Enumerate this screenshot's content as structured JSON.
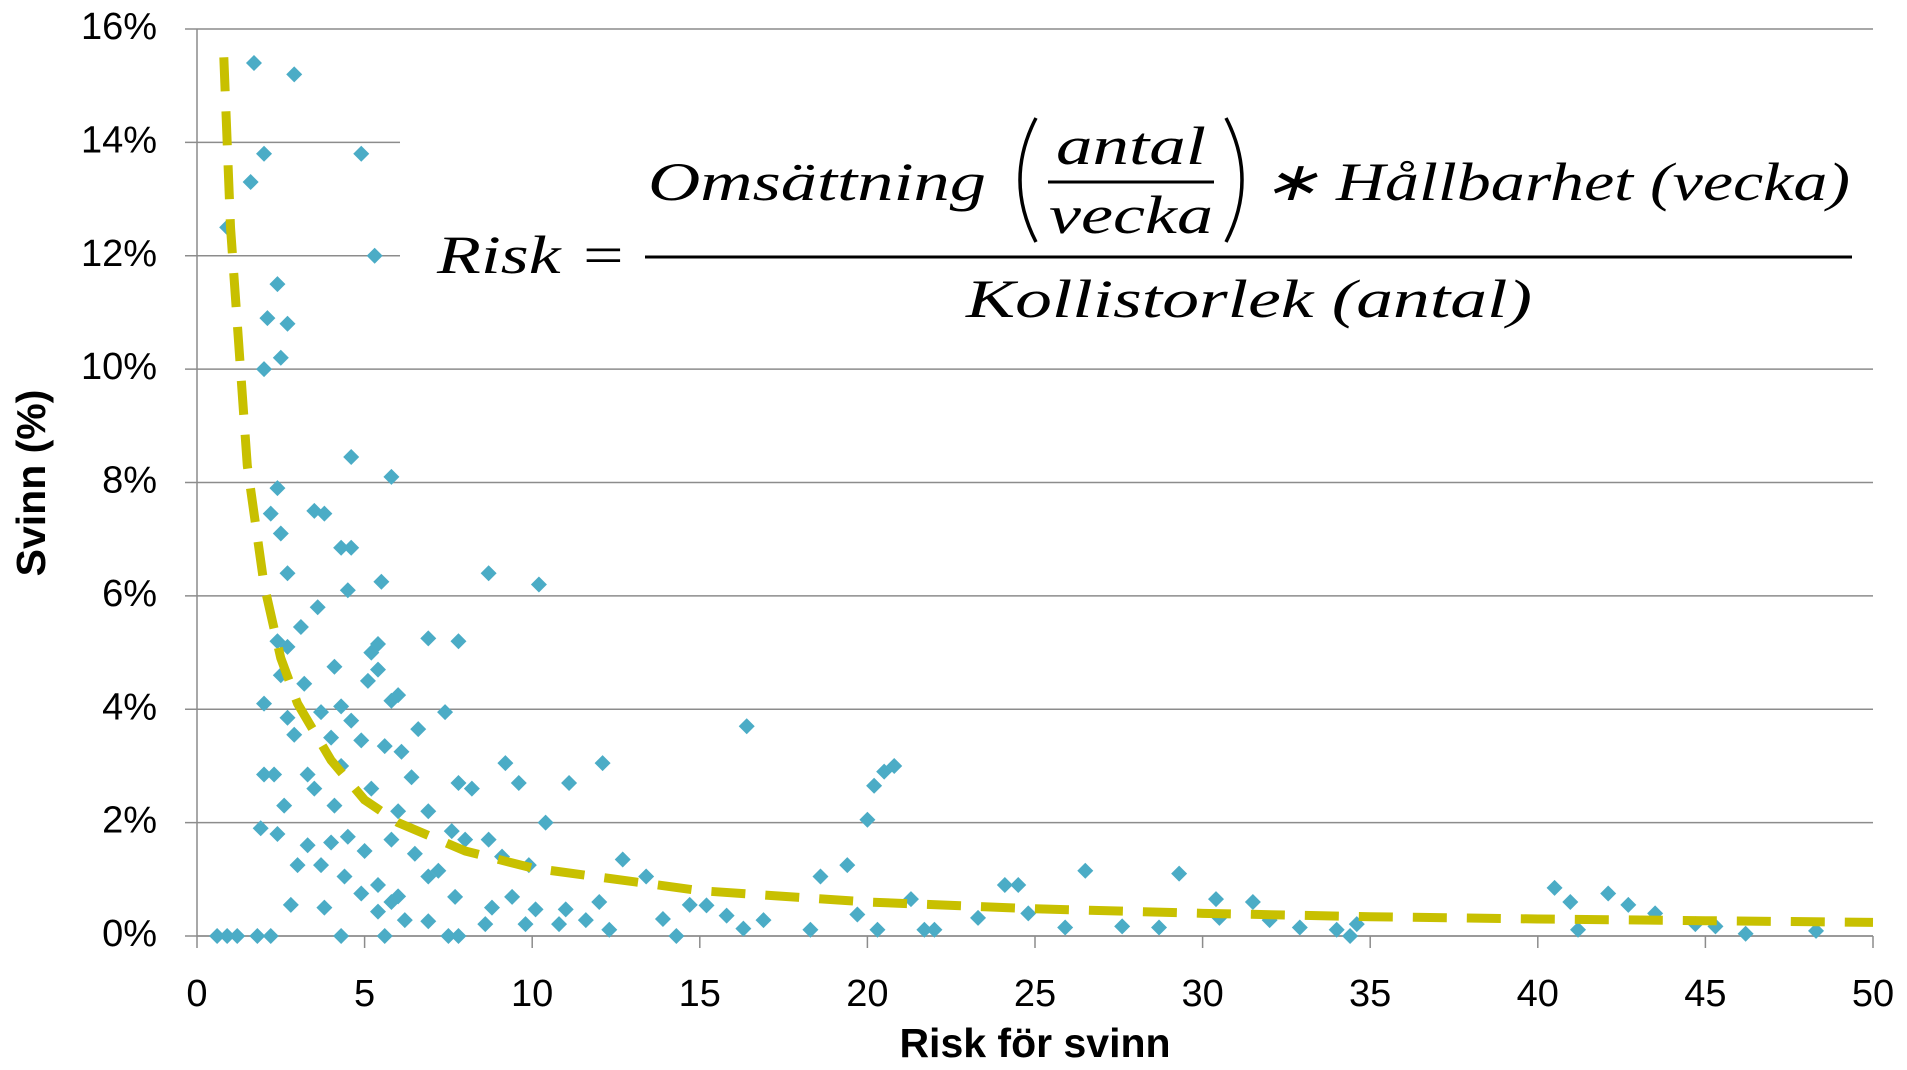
{
  "chart_data": {
    "type": "scatter",
    "xlabel": "Risk för svinn",
    "ylabel": "Svinn (%)",
    "annotation": {
      "lhs": "Risk =",
      "numerator_left": "Omsättning",
      "inner_top": "antal",
      "inner_bottom": "vecka",
      "numerator_right": "∗ Hållbarhet (vecka)",
      "denominator": "Kollistorlek (antal)"
    },
    "xlim": [
      0,
      50
    ],
    "xticks": [
      0,
      5,
      10,
      15,
      20,
      25,
      30,
      35,
      40,
      45,
      50
    ],
    "ylim": [
      0,
      16
    ],
    "yticks": [
      {
        "value": 0,
        "label": "0%"
      },
      {
        "value": 2,
        "label": "2%"
      },
      {
        "value": 4,
        "label": "4%"
      },
      {
        "value": 6,
        "label": "6%"
      },
      {
        "value": 8,
        "label": "8%"
      },
      {
        "value": 10,
        "label": "10%"
      },
      {
        "value": 12,
        "label": "12%"
      },
      {
        "value": 14,
        "label": "14%"
      },
      {
        "value": 16,
        "label": "16%"
      }
    ],
    "grid": true,
    "series": [
      {
        "type": "scatter",
        "color": "#4bacc6",
        "x": [
          1.7,
          2.9,
          2.0,
          4.9,
          1.6,
          0.9,
          5.3,
          2.4,
          2.1,
          2.7,
          2.5,
          2.0,
          4.6,
          5.8,
          2.4,
          3.5,
          3.8,
          2.2,
          2.5,
          4.3,
          4.6,
          2.7,
          8.7,
          10.2,
          4.5,
          5.5,
          3.6,
          3.1,
          6.9,
          7.8,
          2.4,
          2.7,
          5.4,
          5.2,
          4.1,
          5.4,
          2.5,
          3.2,
          5.1,
          6.0,
          2.0,
          5.8,
          4.3,
          7.4,
          3.7,
          2.7,
          4.6,
          16.4,
          6.6,
          2.9,
          4.0,
          4.9,
          5.6,
          6.1,
          4.3,
          12.1,
          9.2,
          20.8,
          20.5,
          3.3,
          2.0,
          6.4,
          2.3,
          20.2,
          11.1,
          9.6,
          7.8,
          8.2,
          3.5,
          5.2,
          2.6,
          4.1,
          6.0,
          6.9,
          10.4,
          20.0,
          1.9,
          2.4,
          4.5,
          5.8,
          7.6,
          8.0,
          8.7,
          4.0,
          3.3,
          5.0,
          6.5,
          9.1,
          19.4,
          3.0,
          3.7,
          12.7,
          9.9,
          26.5,
          29.3,
          7.2,
          4.4,
          13.4,
          18.6,
          5.4,
          6.9,
          24.5,
          24.1,
          40.5,
          6.0,
          21.3,
          42.1,
          30.4,
          31.5,
          42.7,
          40.97,
          2.8,
          3.8,
          12.0,
          14.7,
          8.8,
          10.1,
          11.0,
          43.5,
          24.8,
          23.3,
          19.7,
          16.9,
          15.8,
          13.9,
          30.5,
          32.0,
          34.6,
          45.3,
          25.9,
          27.6,
          28.7,
          32.9,
          34.0,
          41.2,
          48.3,
          46.2,
          34.4,
          21.7,
          22.0,
          20.3,
          18.3,
          16.3,
          14.3,
          12.3,
          11.6,
          10.8,
          9.8,
          8.6,
          7.8,
          7.5,
          6.9,
          6.2,
          5.6,
          4.3,
          2.2,
          1.8,
          1.2,
          0.9,
          0.6,
          4.9,
          5.8,
          5.4,
          7.7,
          9.4,
          15.2,
          44.7
        ],
        "values": [
          15.4,
          15.2,
          13.8,
          13.8,
          13.3,
          12.5,
          12.0,
          11.5,
          10.9,
          10.8,
          10.2,
          10.0,
          8.45,
          8.1,
          7.9,
          7.5,
          7.45,
          7.45,
          7.1,
          6.85,
          6.85,
          6.4,
          6.4,
          6.2,
          6.1,
          6.25,
          5.8,
          5.45,
          5.25,
          5.2,
          5.2,
          5.1,
          5.15,
          5.0,
          4.75,
          4.7,
          4.6,
          4.45,
          4.5,
          4.25,
          4.1,
          4.15,
          4.05,
          3.95,
          3.95,
          3.85,
          3.8,
          3.7,
          3.65,
          3.55,
          3.5,
          3.45,
          3.35,
          3.25,
          3.0,
          3.05,
          3.05,
          3.0,
          2.9,
          2.85,
          2.85,
          2.8,
          2.85,
          2.65,
          2.7,
          2.7,
          2.7,
          2.6,
          2.6,
          2.6,
          2.3,
          2.3,
          2.2,
          2.2,
          2.0,
          2.05,
          1.9,
          1.8,
          1.75,
          1.7,
          1.85,
          1.7,
          1.7,
          1.65,
          1.6,
          1.5,
          1.45,
          1.4,
          1.25,
          1.25,
          1.25,
          1.35,
          1.25,
          1.15,
          1.1,
          1.15,
          1.05,
          1.05,
          1.05,
          0.9,
          1.05,
          0.9,
          0.9,
          0.85,
          0.7,
          0.65,
          0.75,
          0.65,
          0.6,
          0.55,
          0.6,
          0.55,
          0.5,
          0.6,
          0.55,
          0.5,
          0.47,
          0.47,
          0.4,
          0.4,
          0.32,
          0.38,
          0.28,
          0.36,
          0.3,
          0.32,
          0.28,
          0.21,
          0.17,
          0.15,
          0.17,
          0.15,
          0.15,
          0.11,
          0.11,
          0.09,
          0.04,
          0.0,
          0.11,
          0.11,
          0.11,
          0.11,
          0.13,
          0.0,
          0.11,
          0.28,
          0.21,
          0.21,
          0.21,
          0.0,
          0.0,
          0.26,
          0.28,
          0.0,
          0.0,
          0.0,
          0.0,
          0.0,
          0.0,
          0.0,
          0.75,
          0.6,
          0.43,
          0.69,
          0.69,
          0.54,
          0.21
        ]
      },
      {
        "type": "line",
        "color": "#c8c000",
        "dashed": true,
        "x": [
          0.8,
          1,
          1.5,
          2,
          2.5,
          3,
          4,
          5,
          6,
          8,
          10,
          15,
          20,
          25,
          30,
          35,
          40,
          45,
          50
        ],
        "values": [
          15.5,
          12.5,
          8.3,
          6.2,
          4.9,
          4.1,
          3.1,
          2.4,
          2.0,
          1.5,
          1.2,
          0.8,
          0.6,
          0.48,
          0.4,
          0.34,
          0.3,
          0.27,
          0.24
        ]
      }
    ]
  }
}
